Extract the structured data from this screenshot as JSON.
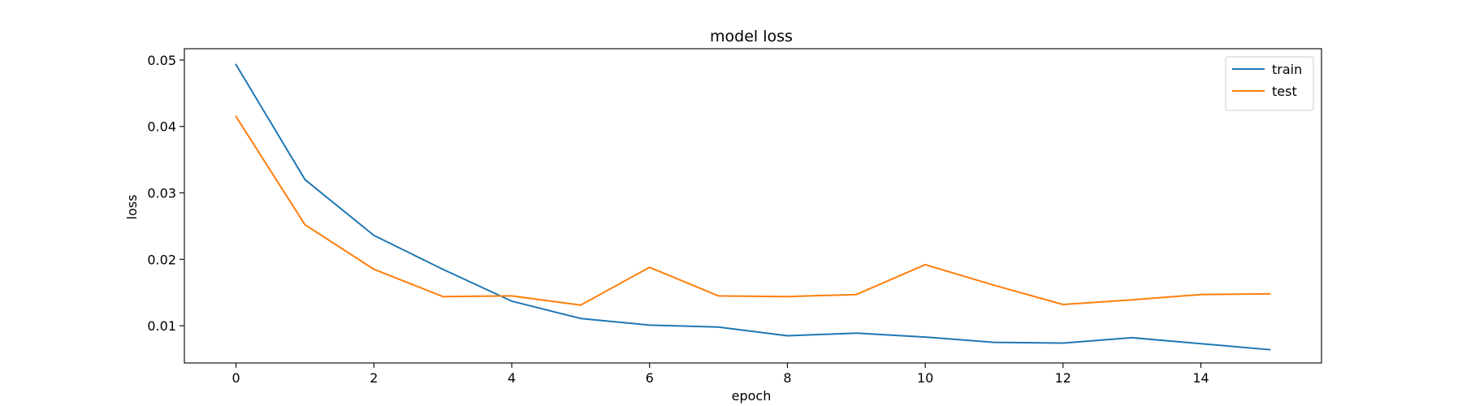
{
  "chart_data": {
    "type": "line",
    "title": "model loss",
    "xlabel": "epoch",
    "ylabel": "loss",
    "x": [
      0,
      1,
      2,
      3,
      4,
      5,
      6,
      7,
      8,
      9,
      10,
      11,
      12,
      13,
      14,
      15
    ],
    "xticks": [
      0,
      2,
      4,
      6,
      8,
      10,
      12,
      14
    ],
    "yticks": [
      0.01,
      0.02,
      0.03,
      0.04,
      0.05
    ],
    "ytick_labels": [
      "0.01",
      "0.02",
      "0.03",
      "0.04",
      "0.05"
    ],
    "xlim": [
      -0.75,
      15.75
    ],
    "ylim": [
      0.0044,
      0.0517
    ],
    "grid": false,
    "legend_position": "top-right",
    "series": [
      {
        "name": "train",
        "color": "#1f77b4",
        "values": [
          0.0493,
          0.032,
          0.0236,
          0.0185,
          0.0137,
          0.0111,
          0.0101,
          0.0098,
          0.0085,
          0.0089,
          0.0083,
          0.0075,
          0.0074,
          0.0082,
          0.0073,
          0.0064
        ]
      },
      {
        "name": "test",
        "color": "#ff7f0e",
        "values": [
          0.0415,
          0.0252,
          0.0185,
          0.0144,
          0.0145,
          0.0131,
          0.0188,
          0.0145,
          0.0144,
          0.0147,
          0.0192,
          0.0161,
          0.0132,
          0.0139,
          0.0147,
          0.0148
        ]
      }
    ]
  }
}
